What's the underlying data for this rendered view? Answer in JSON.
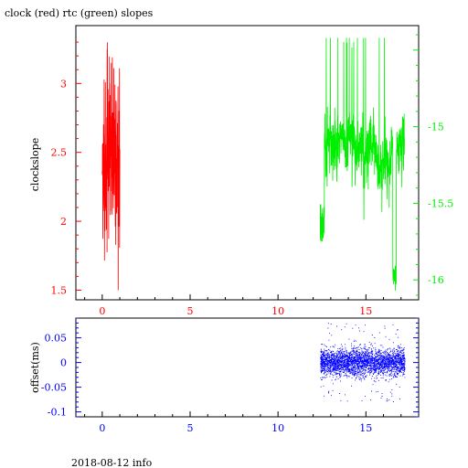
{
  "title": "clock (red) rtc (green) slopes",
  "footer": "2018-08-12 info",
  "colors": {
    "clock": "#ff0000",
    "rtc": "#00ee00",
    "offset": "#0000ff",
    "axis": "#000000"
  },
  "chart_data": [
    {
      "type": "line",
      "ylabel": "clockslope",
      "xlim": [
        -1.5,
        18
      ],
      "x_ticks": [
        "0",
        "5",
        "10",
        "15"
      ],
      "x_tick_values": [
        0,
        5,
        10,
        15
      ],
      "left_axis": {
        "ylim": [
          1.43,
          3.42
        ],
        "ticks": [
          "1.5",
          "2",
          "2.5",
          "3"
        ],
        "tick_values": [
          1.5,
          2,
          2.5,
          3
        ]
      },
      "right_axis": {
        "ylim": [
          -16.13,
          -14.34
        ],
        "ticks": [
          "-16",
          "-15.5",
          "-15"
        ],
        "tick_values": [
          -16,
          -15.5,
          -15
        ]
      },
      "series": [
        {
          "name": "clock",
          "axis": "left",
          "x_range": [
            0.0,
            1.0
          ],
          "y_range": [
            1.5,
            3.35
          ],
          "y_typical": 2.45
        },
        {
          "name": "rtc",
          "axis": "right",
          "x_range": [
            12.4,
            17.2
          ],
          "y_range": [
            -16.08,
            -14.42
          ],
          "y_typical": -15.3
        }
      ]
    },
    {
      "type": "scatter",
      "ylabel": "offset(ms)",
      "xlim": [
        -1.5,
        18
      ],
      "ylim": [
        -0.11,
        0.09
      ],
      "x_ticks": [
        "0",
        "5",
        "10",
        "15"
      ],
      "x_tick_values": [
        0,
        5,
        10,
        15
      ],
      "y_ticks": [
        "-0.1",
        "-0.05",
        "0",
        "0.05"
      ],
      "y_tick_values": [
        -0.1,
        -0.05,
        0,
        0.05
      ],
      "series": [
        {
          "name": "offset",
          "x_range": [
            12.4,
            17.2
          ],
          "y_center": 0.0,
          "y_spread": 0.03,
          "y_outlier_range": [
            -0.08,
            0.08
          ]
        }
      ]
    }
  ]
}
